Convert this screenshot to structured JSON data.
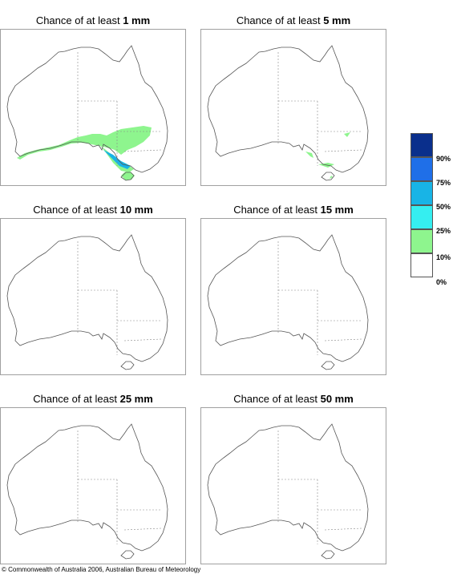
{
  "panels": [
    {
      "prefix": "Chance of at least ",
      "amount": "1 mm"
    },
    {
      "prefix": "Chance of at least ",
      "amount": "5 mm"
    },
    {
      "prefix": "Chance of at least ",
      "amount": "10 mm"
    },
    {
      "prefix": "Chance of at least ",
      "amount": "15 mm"
    },
    {
      "prefix": "Chance of at least ",
      "amount": "25 mm"
    },
    {
      "prefix": "Chance of at least ",
      "amount": "50 mm"
    }
  ],
  "legend": {
    "labels": [
      "90%",
      "75%",
      "50%",
      "25%",
      "10%",
      "0%"
    ],
    "colors": [
      "#0a2f8c",
      "#1f6fe8",
      "#18b4e6",
      "#35eef0",
      "#8ef58e",
      "#ffffff"
    ]
  },
  "colors": {
    "coast": "#555555",
    "border": "#888888",
    "frame": "#a0a0a0"
  },
  "copyright": "© Commonwealth of Australia 2006, Australian Bureau of Meteorology"
}
